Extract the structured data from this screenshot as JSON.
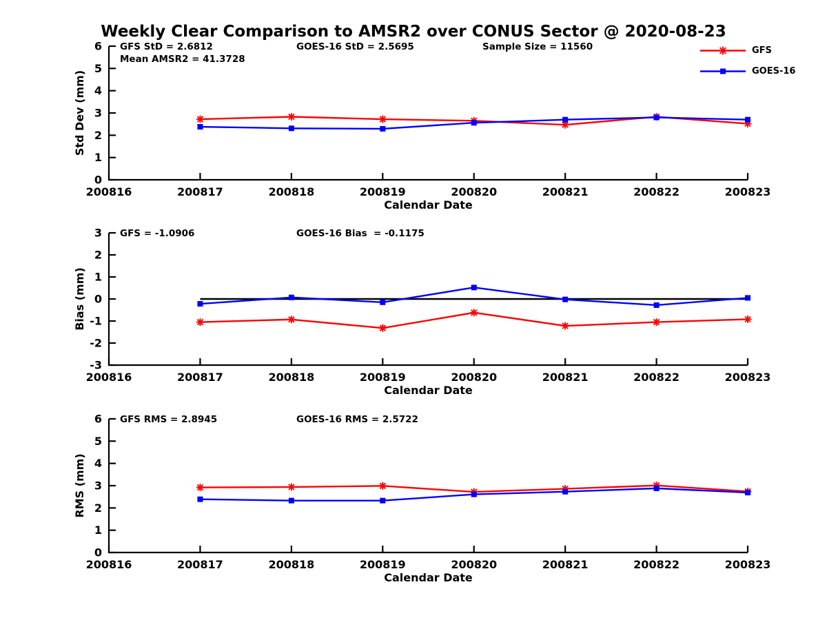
{
  "figure": {
    "title": "Weekly Clear Comparison to AMSR2 over CONUS Sector @ 2020-08-23",
    "background": "#ffffff"
  },
  "legend": {
    "position": "top-right",
    "items": [
      {
        "label": "GFS",
        "color": "#ff0000",
        "marker": "asterisk"
      },
      {
        "label": "GOES-16",
        "color": "#0000ff",
        "marker": "square"
      }
    ]
  },
  "colors": {
    "gfs": "#ff0000",
    "goes16": "#0000ff",
    "axis": "#000000",
    "zero_line": "#000000"
  },
  "chart_data": [
    {
      "type": "line",
      "name": "std-dev",
      "ylabel": "Std Dev (mm)",
      "xlabel": "Calendar Date",
      "ylim": [
        0,
        6
      ],
      "yticks": [
        0,
        1,
        2,
        3,
        4,
        5,
        6
      ],
      "xticks": [
        "200816",
        "200817",
        "200818",
        "200819",
        "200820",
        "200821",
        "200822",
        "200823"
      ],
      "x": [
        200817,
        200818,
        200819,
        200820,
        200821,
        200822,
        200823
      ],
      "grid": false,
      "series": [
        {
          "name": "GFS",
          "color": "#ff0000",
          "marker": "asterisk",
          "values": [
            2.72,
            2.83,
            2.72,
            2.65,
            2.47,
            2.83,
            2.52
          ]
        },
        {
          "name": "GOES-16",
          "color": "#0000ff",
          "marker": "square",
          "values": [
            2.38,
            2.31,
            2.29,
            2.56,
            2.7,
            2.8,
            2.7
          ]
        }
      ],
      "annotations": [
        {
          "text": "GFS StD = 2.6812",
          "row": 0,
          "col": 0
        },
        {
          "text": "Mean AMSR2 = 41.3728",
          "row": 1,
          "col": 0
        },
        {
          "text": "GOES-16 StD = 2.5695",
          "row": 0,
          "col": 1
        },
        {
          "text": "Sample Size = 11560",
          "row": 0,
          "col": 2
        }
      ]
    },
    {
      "type": "line",
      "name": "bias",
      "ylabel": "Bias (mm)",
      "xlabel": "Calendar Date",
      "ylim": [
        -3,
        3
      ],
      "yticks": [
        -3,
        -2,
        -1,
        0,
        1,
        2,
        3
      ],
      "xticks": [
        "200816",
        "200817",
        "200818",
        "200819",
        "200820",
        "200821",
        "200822",
        "200823"
      ],
      "x": [
        200817,
        200818,
        200819,
        200820,
        200821,
        200822,
        200823
      ],
      "grid": false,
      "zero_line": {
        "y": 0,
        "color": "#000000",
        "x_range": [
          200817,
          200823
        ]
      },
      "series": [
        {
          "name": "GFS",
          "color": "#ff0000",
          "marker": "asterisk",
          "values": [
            -1.05,
            -0.93,
            -1.32,
            -0.62,
            -1.22,
            -1.05,
            -0.92
          ]
        },
        {
          "name": "GOES-16",
          "color": "#0000ff",
          "marker": "square",
          "values": [
            -0.22,
            0.07,
            -0.15,
            0.52,
            -0.02,
            -0.28,
            0.05
          ]
        }
      ],
      "annotations": [
        {
          "text": "GFS = -1.0906",
          "row": 0,
          "col": 0
        },
        {
          "text": "GOES-16 Bias  = -0.1175",
          "row": 0,
          "col": 1
        }
      ]
    },
    {
      "type": "line",
      "name": "rms",
      "ylabel": "RMS (mm)",
      "xlabel": "Calendar Date",
      "ylim": [
        0,
        6
      ],
      "yticks": [
        0,
        1,
        2,
        3,
        4,
        5,
        6
      ],
      "xticks": [
        "200816",
        "200817",
        "200818",
        "200819",
        "200820",
        "200821",
        "200822",
        "200823"
      ],
      "x": [
        200817,
        200818,
        200819,
        200820,
        200821,
        200822,
        200823
      ],
      "grid": false,
      "series": [
        {
          "name": "GFS",
          "color": "#ff0000",
          "marker": "asterisk",
          "values": [
            2.92,
            2.94,
            2.99,
            2.72,
            2.86,
            3.01,
            2.74
          ]
        },
        {
          "name": "GOES-16",
          "color": "#0000ff",
          "marker": "square",
          "values": [
            2.39,
            2.33,
            2.33,
            2.61,
            2.73,
            2.88,
            2.69
          ]
        }
      ],
      "annotations": [
        {
          "text": "GFS RMS = 2.8945",
          "row": 0,
          "col": 0
        },
        {
          "text": "GOES-16 RMS = 2.5722",
          "row": 0,
          "col": 1
        }
      ]
    }
  ]
}
